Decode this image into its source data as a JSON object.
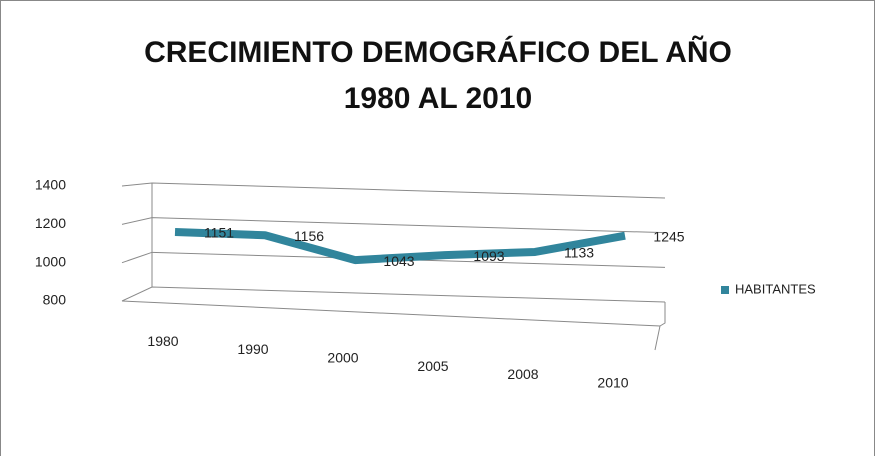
{
  "chart_data": {
    "type": "line3d",
    "title": "CRECIMIENTO DEMOGRÁFICO DEL AÑO 1980 AL 2010",
    "categories": [
      "1980",
      "1990",
      "2000",
      "2005",
      "2008",
      "2010"
    ],
    "series": [
      {
        "name": "HABITANTES",
        "color": "#31859c",
        "values": [
          1151,
          1156,
          1043,
          1093,
          1133,
          1245
        ]
      }
    ],
    "ylim": [
      800,
      1400
    ],
    "yticks": [
      800,
      1000,
      1200,
      1400
    ],
    "grid": true,
    "legend": "right"
  }
}
